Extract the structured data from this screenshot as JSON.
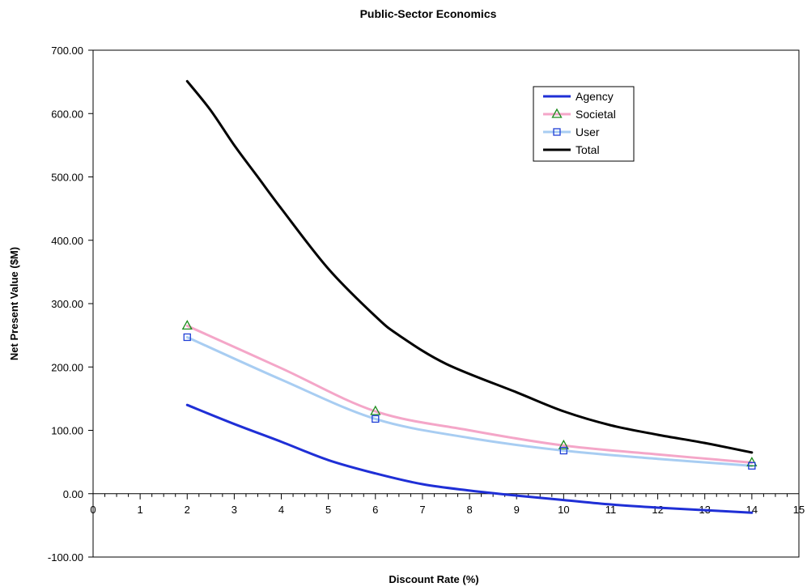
{
  "chart_data": {
    "type": "line",
    "title": "Public-Sector Economics",
    "xlabel": "Discount Rate (%)",
    "ylabel": "Net Present Value ($M)",
    "xlim": [
      0,
      15
    ],
    "ylim": [
      -100,
      700
    ],
    "x_ticks": [
      "0",
      "1",
      "2",
      "3",
      "4",
      "5",
      "6",
      "7",
      "8",
      "9",
      "10",
      "11",
      "12",
      "13",
      "14",
      "15"
    ],
    "y_ticks": [
      "700.00",
      "600.00",
      "500.00",
      "400.00",
      "300.00",
      "200.00",
      "100.00",
      "0.00",
      "-100.00"
    ],
    "grid": false,
    "legend_position": "top-right",
    "series": [
      {
        "name": "Agency",
        "color": "#1f2fd6",
        "marker": "none",
        "points": [
          [
            2,
            140
          ],
          [
            3,
            110
          ],
          [
            4,
            82
          ],
          [
            5,
            53
          ],
          [
            6,
            32
          ],
          [
            7,
            15
          ],
          [
            8,
            5
          ],
          [
            9,
            -3
          ],
          [
            10,
            -10
          ],
          [
            11,
            -17
          ],
          [
            12,
            -22
          ],
          [
            13,
            -26
          ],
          [
            14,
            -30
          ]
        ],
        "marker_points": []
      },
      {
        "name": "Societal",
        "color": "#f4a6c8",
        "marker": "triangle",
        "marker_color": "#1e8c1e",
        "points": [
          [
            2,
            265
          ],
          [
            4,
            198
          ],
          [
            6,
            130
          ],
          [
            8,
            100
          ],
          [
            10,
            76
          ],
          [
            12,
            62
          ],
          [
            14,
            49
          ]
        ],
        "marker_points": [
          [
            2,
            265
          ],
          [
            6,
            130
          ],
          [
            10,
            76
          ],
          [
            14,
            49
          ]
        ]
      },
      {
        "name": "User",
        "color": "#a8cdf2",
        "marker": "square",
        "marker_color": "#1f3fd6",
        "points": [
          [
            2,
            247
          ],
          [
            4,
            180
          ],
          [
            6,
            118
          ],
          [
            8,
            88
          ],
          [
            10,
            68
          ],
          [
            12,
            55
          ],
          [
            14,
            44
          ]
        ],
        "marker_points": [
          [
            2,
            247
          ],
          [
            6,
            118
          ],
          [
            10,
            68
          ],
          [
            14,
            44
          ]
        ]
      },
      {
        "name": "Total",
        "color": "#000000",
        "marker": "none",
        "points": [
          [
            2,
            651
          ],
          [
            2.5,
            605
          ],
          [
            3,
            550
          ],
          [
            3.5,
            500
          ],
          [
            4,
            450
          ],
          [
            5,
            355
          ],
          [
            6,
            280
          ],
          [
            6.5,
            250
          ],
          [
            7.5,
            205
          ],
          [
            9,
            160
          ],
          [
            10,
            130
          ],
          [
            11,
            108
          ],
          [
            12,
            93
          ],
          [
            13,
            80
          ],
          [
            14,
            65
          ]
        ],
        "marker_points": []
      }
    ]
  }
}
